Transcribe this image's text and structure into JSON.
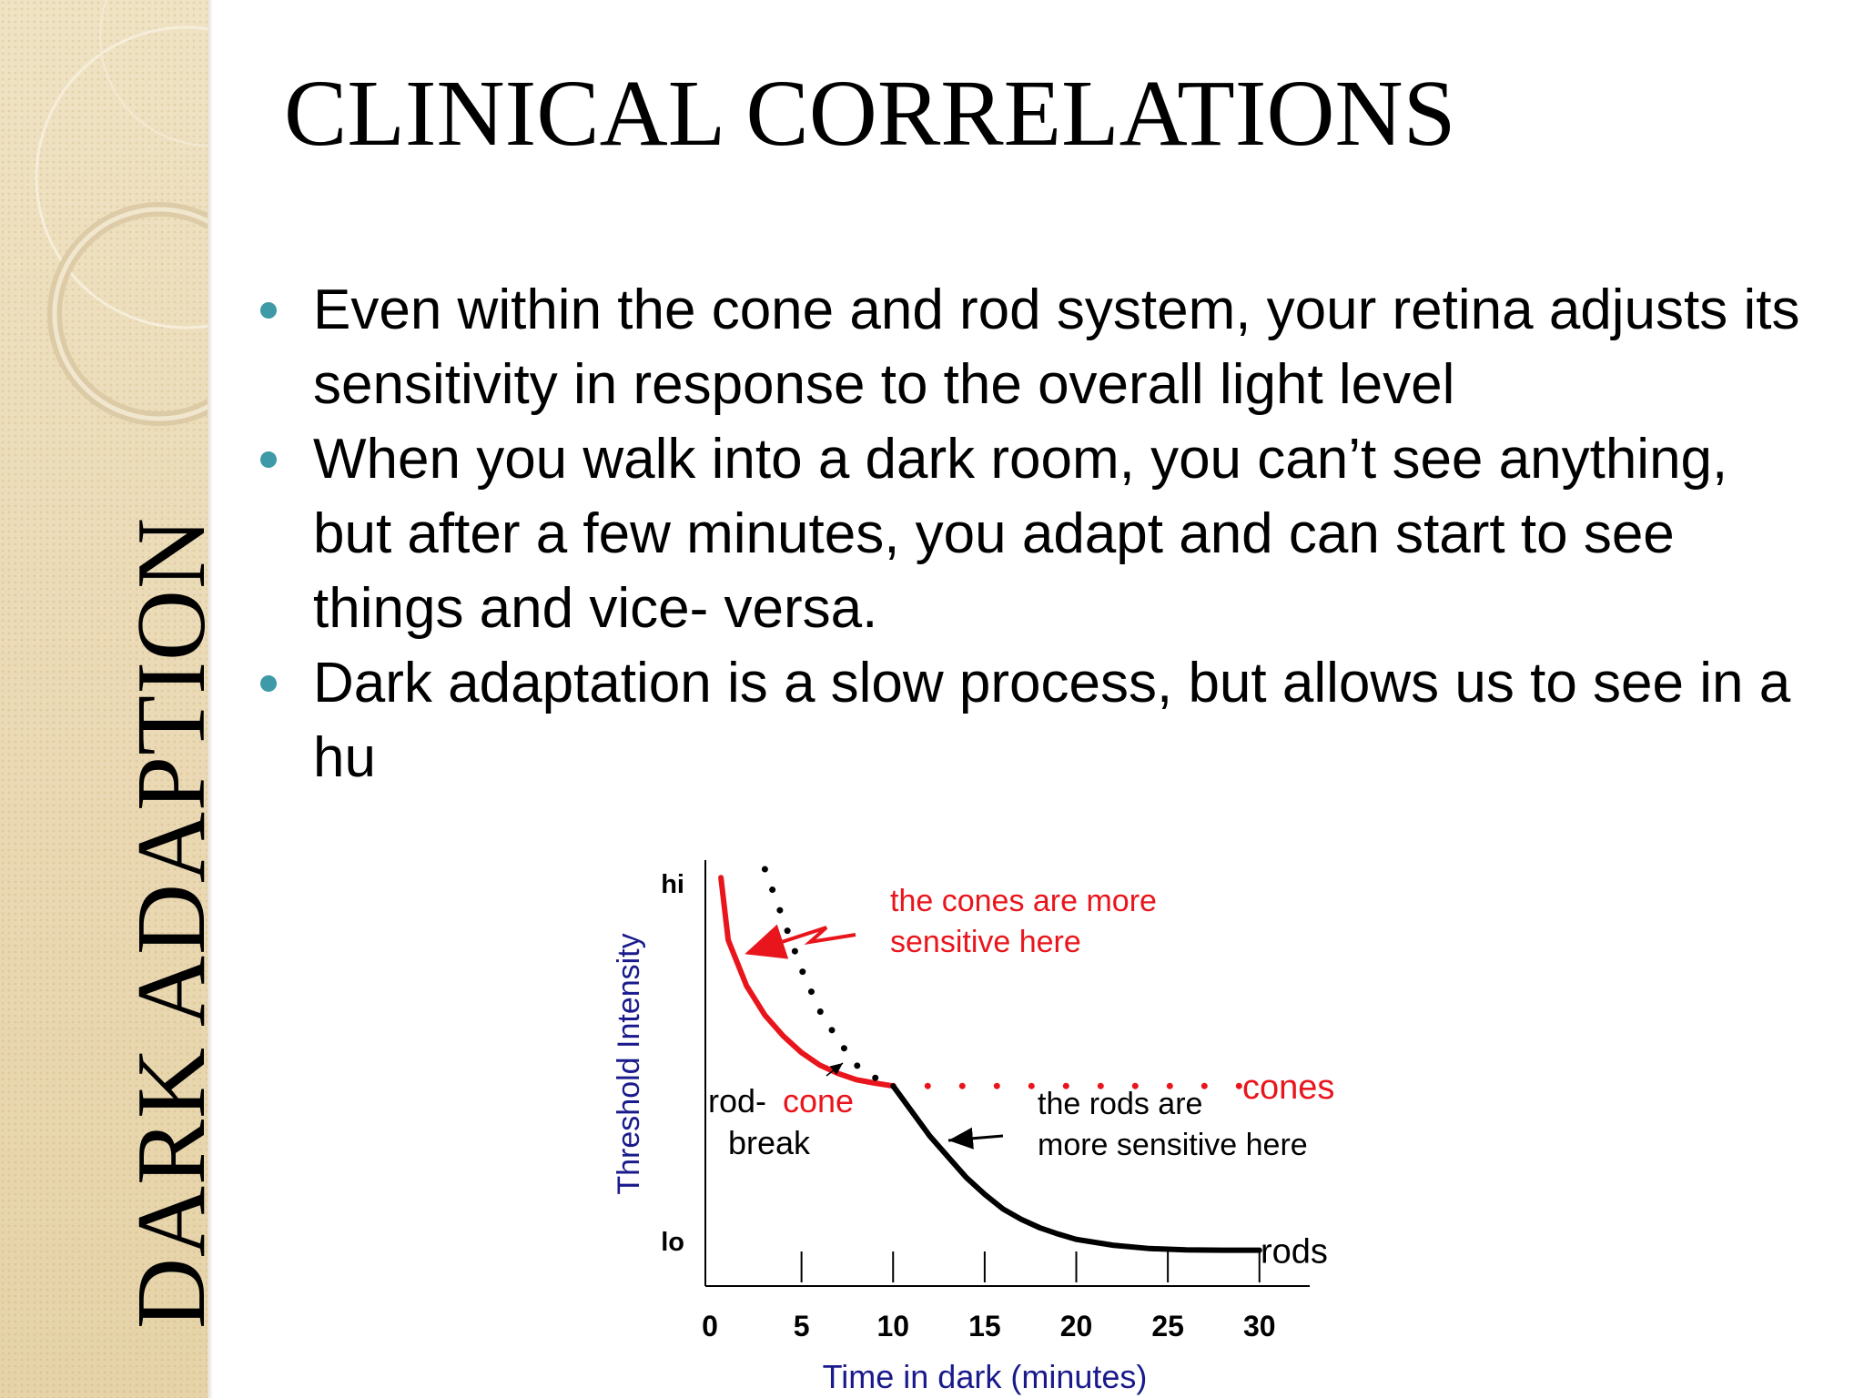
{
  "sidebar": {
    "vertical_title": "DARK ADAPTION"
  },
  "slide": {
    "title": "CLINICAL CORRELATIONS",
    "bullets": [
      {
        "text": "Even within the cone and rod system, your retina adjusts its sensitivity in response to the overall light level"
      },
      {
        "text": "When you walk into a dark room, you can’t see anything, but after a few minutes, you adapt and can start to see things and vice- versa."
      },
      {
        "text": "Dark adaptation is a slow process, but allows us to see in a hu"
      }
    ]
  },
  "colors": {
    "accent": "#3d9aa6",
    "cones": "#e8161c",
    "rods": "#000000",
    "axis_label": "#1a1a8c"
  },
  "chart_data": {
    "type": "line",
    "xlabel": "Time in dark (minutes)",
    "ylabel": "Threshold Intensity",
    "x_ticks": [
      0,
      5,
      10,
      15,
      20,
      25,
      30
    ],
    "xlim": [
      0,
      32
    ],
    "y_tick_labels": {
      "hi": "hi",
      "lo": "lo"
    },
    "ylim": [
      0,
      100
    ],
    "series": [
      {
        "name": "cones",
        "style": "solid",
        "color": "#e8161c",
        "points": [
          [
            0.6,
            98
          ],
          [
            1,
            83
          ],
          [
            2,
            72
          ],
          [
            3,
            65
          ],
          [
            4,
            60
          ],
          [
            5,
            56
          ],
          [
            6,
            53
          ],
          [
            7,
            51
          ],
          [
            8,
            49.5
          ],
          [
            9,
            48.7
          ],
          [
            10,
            48
          ]
        ]
      },
      {
        "name": "cones",
        "style": "dotted",
        "color": "#e8161c",
        "points": [
          [
            10,
            48
          ],
          [
            29,
            48
          ]
        ]
      },
      {
        "name": "rods",
        "style": "solid",
        "color": "#000000",
        "points": [
          [
            10,
            48
          ],
          [
            11,
            42
          ],
          [
            12,
            36
          ],
          [
            13,
            31
          ],
          [
            14,
            26
          ],
          [
            15,
            22
          ],
          [
            16,
            18.5
          ],
          [
            17,
            16
          ],
          [
            18,
            14
          ],
          [
            19,
            12.5
          ],
          [
            20,
            11.2
          ],
          [
            22,
            9.8
          ],
          [
            24,
            9
          ],
          [
            26,
            8.7
          ],
          [
            28,
            8.6
          ],
          [
            30,
            8.6
          ]
        ]
      },
      {
        "name": "",
        "style": "dotted",
        "color": "#000000",
        "points": [
          [
            3,
            100
          ],
          [
            4,
            88
          ],
          [
            5,
            76
          ],
          [
            6,
            66
          ],
          [
            7,
            59
          ],
          [
            8,
            53
          ],
          [
            9,
            50
          ],
          [
            10,
            48
          ]
        ]
      }
    ],
    "annotations": {
      "cones_sensitive": [
        "the cones are more",
        "sensitive here"
      ],
      "cones_label": "cones",
      "rods_sensitive": [
        "the rods are",
        "more sensitive here"
      ],
      "rods_label": "rods",
      "rod_cone_break": {
        "rod": "rod-",
        "cone": "cone",
        "break": "break"
      }
    }
  }
}
